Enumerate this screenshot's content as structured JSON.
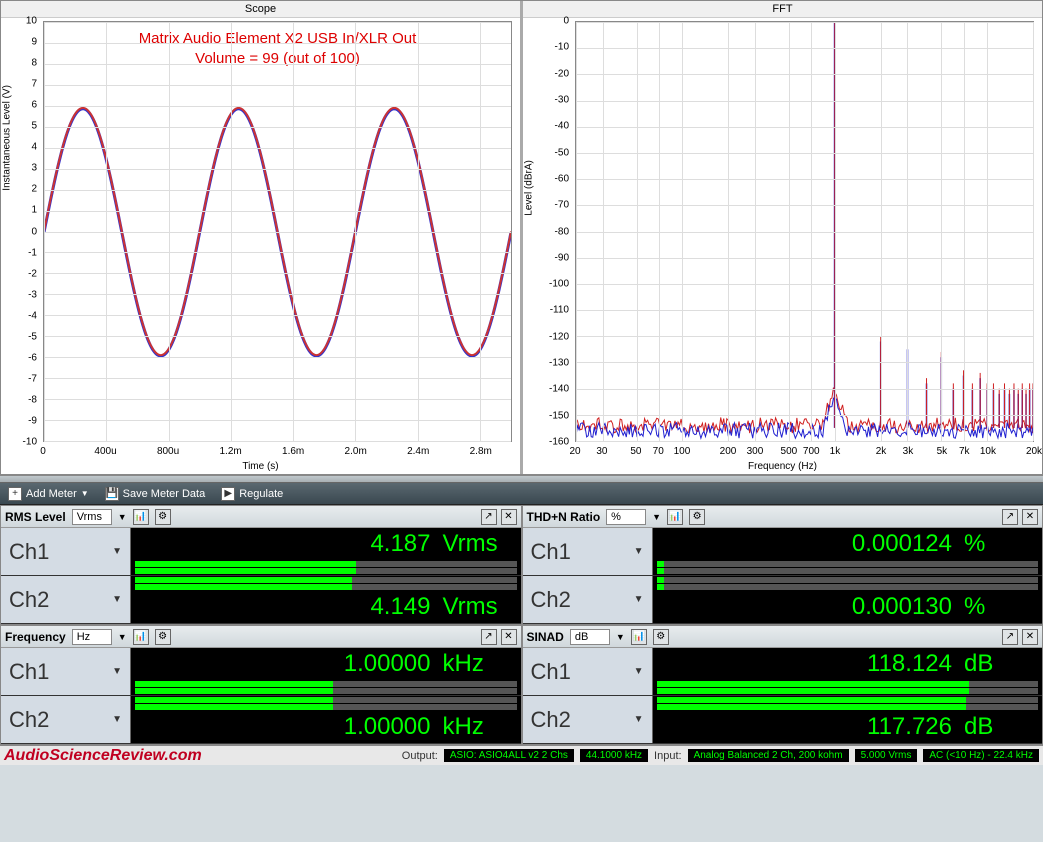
{
  "scope": {
    "title": "Scope",
    "overlay_line1": "Matrix Audio Element X2 USB In/XLR Out",
    "overlay_line2": "Volume = 99 (out of 100)",
    "overlay_color": "#d00000",
    "y_label": "Instantaneous Level (V)",
    "x_label": "Time (s)",
    "y_ticks": [
      -10,
      -9,
      -8,
      -7,
      -6,
      -5,
      -4,
      -3,
      -2,
      -1,
      0,
      1,
      2,
      3,
      4,
      5,
      6,
      7,
      8,
      9,
      10
    ],
    "x_ticks": [
      "0",
      "400u",
      "800u",
      "1.2m",
      "1.6m",
      "2.0m",
      "2.4m",
      "2.8m"
    ],
    "ylim": [
      -10,
      10
    ],
    "xlim_us": [
      0,
      3000
    ],
    "sine_amplitude": 5.9,
    "sine_freq_hz": 1000,
    "trace_colors": [
      "#cc3333",
      "#3333cc"
    ],
    "grid_color": "#dddddd",
    "border_color": "#888888"
  },
  "fft": {
    "title": "FFT",
    "y_label": "Level (dBrA)",
    "x_label": "Frequency (Hz)",
    "y_ticks": [
      0,
      -10,
      -20,
      -30,
      -40,
      -50,
      -60,
      -70,
      -80,
      -90,
      -100,
      -110,
      -120,
      -130,
      -140,
      -150,
      -160
    ],
    "x_ticks": [
      20,
      30,
      50,
      70,
      100,
      200,
      300,
      500,
      700,
      "1k",
      "2k",
      "3k",
      "5k",
      "7k",
      "10k",
      "20k"
    ],
    "x_tick_vals": [
      20,
      30,
      50,
      70,
      100,
      200,
      300,
      500,
      700,
      1000,
      2000,
      3000,
      5000,
      7000,
      10000,
      20000
    ],
    "ylim": [
      -160,
      0
    ],
    "xlim_hz": [
      20,
      20000
    ],
    "fundamental_hz": 1000,
    "fundamental_db": 0,
    "noise_floor_db": -155,
    "harmonics": [
      {
        "hz": 2000,
        "db": -122
      },
      {
        "hz": 3000,
        "db": -125
      },
      {
        "hz": 4000,
        "db": -138
      },
      {
        "hz": 5000,
        "db": -128
      },
      {
        "hz": 6000,
        "db": -140
      },
      {
        "hz": 7000,
        "db": -135
      },
      {
        "hz": 8000,
        "db": -140
      },
      {
        "hz": 9000,
        "db": -136
      },
      {
        "hz": 10000,
        "db": -140
      },
      {
        "hz": 11000,
        "db": -140
      },
      {
        "hz": 12000,
        "db": -142
      },
      {
        "hz": 13000,
        "db": -140
      },
      {
        "hz": 14000,
        "db": -142
      },
      {
        "hz": 15000,
        "db": -140
      },
      {
        "hz": 16000,
        "db": -142
      },
      {
        "hz": 17000,
        "db": -140
      },
      {
        "hz": 18000,
        "db": -142
      },
      {
        "hz": 19000,
        "db": -140
      },
      {
        "hz": 20000,
        "db": -140
      }
    ],
    "trace_colors": [
      "#d02020",
      "#2020d0"
    ],
    "grid_color": "#dddddd"
  },
  "toolbar": {
    "add_meter": "Add Meter",
    "save_meter": "Save Meter Data",
    "regulate": "Regulate"
  },
  "meters": {
    "rms": {
      "title": "RMS Level",
      "unit": "Vrms",
      "ch1": {
        "label": "Ch1",
        "value": "4.187",
        "unit": "Vrms",
        "bar_pct": 58
      },
      "ch2": {
        "label": "Ch2",
        "value": "4.149",
        "unit": "Vrms",
        "bar_pct": 57
      }
    },
    "thdn": {
      "title": "THD+N Ratio",
      "unit": "%",
      "ch1": {
        "label": "Ch1",
        "value": "0.000124",
        "unit": "%",
        "bar_pct": 2
      },
      "ch2": {
        "label": "Ch2",
        "value": "0.000130",
        "unit": "%",
        "bar_pct": 2
      }
    },
    "freq": {
      "title": "Frequency",
      "unit": "Hz",
      "ch1": {
        "label": "Ch1",
        "value": "1.00000",
        "unit": "kHz",
        "bar_pct": 52
      },
      "ch2": {
        "label": "Ch2",
        "value": "1.00000",
        "unit": "kHz",
        "bar_pct": 52
      }
    },
    "sinad": {
      "title": "SINAD",
      "unit": "dB",
      "ch1": {
        "label": "Ch1",
        "value": "118.124",
        "unit": "dB",
        "bar_pct": 82
      },
      "ch2": {
        "label": "Ch2",
        "value": "117.726",
        "unit": "dB",
        "bar_pct": 81
      }
    }
  },
  "status": {
    "brand": "AudioScienceReview.com",
    "output_label": "Output:",
    "output_device": "ASIO: ASIO4ALL v2 2 Chs",
    "output_rate": "44.1000 kHz",
    "input_label": "Input:",
    "input_device": "Analog Balanced 2 Ch, 200 kohm",
    "input_level": "5.000 Vrms",
    "input_coupling": "AC (<10 Hz) - 22.4 kHz"
  },
  "colors": {
    "meter_text": "#00ff00",
    "meter_bg": "#000000",
    "bar_fill": "#00ff00",
    "bar_bg": "#555555"
  }
}
